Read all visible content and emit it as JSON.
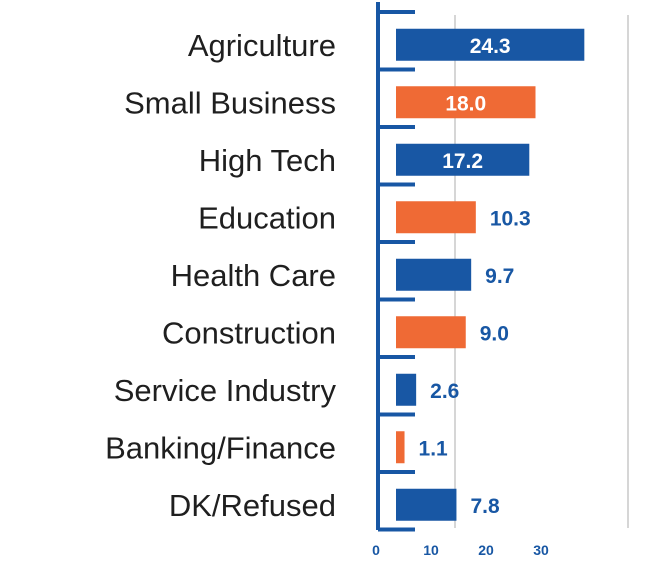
{
  "colors": {
    "blue": "#1857a4",
    "orange": "#ef6a35",
    "grid": "#d6d6d6",
    "text": "#1f1f1f",
    "white": "#ffffff"
  },
  "chart_data": {
    "type": "bar",
    "orientation": "horizontal",
    "title": "",
    "xlabel": "",
    "ylabel": "",
    "categories": [
      "Agriculture",
      "Small Business",
      "High Tech",
      "Education",
      "Health Care",
      "Construction",
      "Service Industry",
      "Banking/Finance",
      "DK/Refused"
    ],
    "values": [
      24.3,
      18.0,
      17.2,
      10.3,
      9.7,
      9.0,
      2.6,
      1.1,
      7.8
    ],
    "value_labels": [
      "24.3",
      "18.0",
      "17.2",
      "10.3",
      "9.7",
      "9.0",
      "2.6",
      "1.1",
      "7.8"
    ],
    "bar_colors": [
      "blue",
      "orange",
      "blue",
      "orange",
      "blue",
      "orange",
      "blue",
      "orange",
      "blue"
    ],
    "x_ticks": [
      0,
      10,
      20,
      30
    ],
    "x_tick_labels": [
      "0",
      "10",
      "20",
      "30"
    ],
    "xlim": [
      0,
      30
    ],
    "grid": true,
    "legend": "none"
  }
}
